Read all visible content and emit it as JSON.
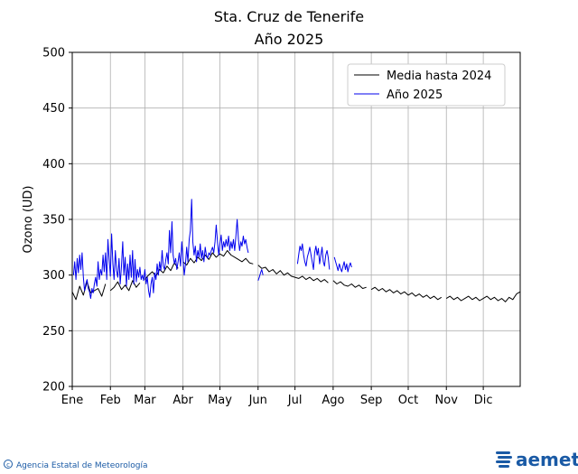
{
  "chart_data": {
    "type": "line",
    "title": "Sta. Cruz de Tenerife",
    "subtitle": "Año 2025",
    "xlabel": "",
    "ylabel": "Ozono (UD)",
    "xlim": [
      1,
      365
    ],
    "ylim": [
      200,
      500
    ],
    "y_ticks": [
      200,
      250,
      300,
      350,
      400,
      450,
      500
    ],
    "x_ticks": [
      {
        "label": "Ene",
        "day": 1
      },
      {
        "label": "Feb",
        "day": 32
      },
      {
        "label": "Mar",
        "day": 60
      },
      {
        "label": "Abr",
        "day": 91
      },
      {
        "label": "May",
        "day": 121
      },
      {
        "label": "Jun",
        "day": 152
      },
      {
        "label": "Jul",
        "day": 182
      },
      {
        "label": "Ago",
        "day": 213
      },
      {
        "label": "Sep",
        "day": 244
      },
      {
        "label": "Oct",
        "day": 274
      },
      {
        "label": "Nov",
        "day": 305
      },
      {
        "label": "Dic",
        "day": 335
      }
    ],
    "grid": true,
    "legend_position": "top-right",
    "series": [
      {
        "name": "Media hasta 2024",
        "color": "#000000",
        "points": [
          [
            1,
            285
          ],
          [
            4,
            278
          ],
          [
            7,
            290
          ],
          [
            10,
            282
          ],
          [
            13,
            294
          ],
          [
            16,
            284
          ],
          [
            19,
            286
          ],
          [
            22,
            288
          ],
          [
            25,
            281
          ],
          [
            28,
            292
          ],
          [
            32,
            286
          ],
          [
            35,
            289
          ],
          [
            38,
            294
          ],
          [
            41,
            287
          ],
          [
            44,
            291
          ],
          [
            47,
            286
          ],
          [
            50,
            295
          ],
          [
            53,
            289
          ],
          [
            56,
            293
          ],
          [
            60,
            296
          ],
          [
            63,
            300
          ],
          [
            66,
            303
          ],
          [
            69,
            299
          ],
          [
            72,
            305
          ],
          [
            75,
            302
          ],
          [
            78,
            308
          ],
          [
            81,
            304
          ],
          [
            84,
            311
          ],
          [
            87,
            306
          ],
          [
            91,
            312
          ],
          [
            94,
            309
          ],
          [
            97,
            315
          ],
          [
            100,
            311
          ],
          [
            103,
            316
          ],
          [
            106,
            313
          ],
          [
            109,
            318
          ],
          [
            112,
            314
          ],
          [
            115,
            320
          ],
          [
            118,
            316
          ],
          [
            121,
            319
          ],
          [
            124,
            317
          ],
          [
            127,
            322
          ],
          [
            130,
            318
          ],
          [
            133,
            316
          ],
          [
            136,
            314
          ],
          [
            139,
            312
          ],
          [
            142,
            315
          ],
          [
            145,
            311
          ],
          [
            148,
            310
          ],
          [
            152,
            309
          ],
          [
            155,
            306
          ],
          [
            158,
            307
          ],
          [
            161,
            303
          ],
          [
            164,
            305
          ],
          [
            167,
            301
          ],
          [
            170,
            304
          ],
          [
            173,
            300
          ],
          [
            176,
            302
          ],
          [
            179,
            299
          ],
          [
            182,
            298
          ],
          [
            185,
            297
          ],
          [
            188,
            299
          ],
          [
            191,
            296
          ],
          [
            194,
            298
          ],
          [
            197,
            295
          ],
          [
            200,
            297
          ],
          [
            203,
            294
          ],
          [
            206,
            296
          ],
          [
            209,
            293
          ],
          [
            213,
            295
          ],
          [
            216,
            292
          ],
          [
            219,
            294
          ],
          [
            222,
            291
          ],
          [
            225,
            290
          ],
          [
            228,
            292
          ],
          [
            231,
            289
          ],
          [
            234,
            291
          ],
          [
            237,
            288
          ],
          [
            240,
            289
          ],
          [
            244,
            287
          ],
          [
            247,
            289
          ],
          [
            250,
            286
          ],
          [
            253,
            288
          ],
          [
            256,
            285
          ],
          [
            259,
            287
          ],
          [
            262,
            284
          ],
          [
            265,
            286
          ],
          [
            268,
            283
          ],
          [
            271,
            285
          ],
          [
            274,
            282
          ],
          [
            277,
            284
          ],
          [
            280,
            281
          ],
          [
            283,
            283
          ],
          [
            286,
            280
          ],
          [
            289,
            282
          ],
          [
            292,
            279
          ],
          [
            295,
            281
          ],
          [
            298,
            278
          ],
          [
            301,
            280
          ],
          [
            305,
            279
          ],
          [
            308,
            281
          ],
          [
            311,
            278
          ],
          [
            314,
            280
          ],
          [
            317,
            277
          ],
          [
            320,
            279
          ],
          [
            323,
            281
          ],
          [
            326,
            278
          ],
          [
            329,
            280
          ],
          [
            332,
            277
          ],
          [
            335,
            279
          ],
          [
            338,
            281
          ],
          [
            341,
            278
          ],
          [
            344,
            280
          ],
          [
            347,
            277
          ],
          [
            350,
            279
          ],
          [
            353,
            276
          ],
          [
            356,
            280
          ],
          [
            359,
            278
          ],
          [
            362,
            283
          ],
          [
            365,
            285
          ]
        ]
      },
      {
        "name": "Año 2025",
        "color": "#0000ee",
        "points": [
          [
            2,
            300
          ],
          [
            3,
            312
          ],
          [
            4,
            296
          ],
          [
            5,
            315
          ],
          [
            6,
            302
          ],
          [
            7,
            318
          ],
          [
            8,
            305
          ],
          [
            9,
            320
          ],
          [
            10,
            298
          ],
          [
            11,
            286
          ],
          [
            12,
            292
          ],
          [
            13,
            296
          ],
          [
            14,
            288
          ],
          [
            15,
            285
          ],
          [
            16,
            279
          ],
          [
            17,
            288
          ],
          [
            18,
            284
          ],
          [
            19,
            292
          ],
          [
            20,
            298
          ],
          [
            21,
            290
          ],
          [
            22,
            312
          ],
          [
            23,
            296
          ],
          [
            24,
            305
          ],
          [
            25,
            300
          ],
          [
            26,
            318
          ],
          [
            27,
            303
          ],
          [
            28,
            320
          ],
          [
            29,
            296
          ],
          [
            30,
            332
          ],
          [
            31,
            314
          ],
          [
            32,
            299
          ],
          [
            33,
            337
          ],
          [
            34,
            310
          ],
          [
            35,
            296
          ],
          [
            36,
            322
          ],
          [
            37,
            304
          ],
          [
            38,
            298
          ],
          [
            39,
            315
          ],
          [
            40,
            292
          ],
          [
            41,
            308
          ],
          [
            42,
            330
          ],
          [
            43,
            300
          ],
          [
            44,
            316
          ],
          [
            45,
            290
          ],
          [
            46,
            310
          ],
          [
            47,
            296
          ],
          [
            48,
            318
          ],
          [
            49,
            298
          ],
          [
            50,
            322
          ],
          [
            51,
            292
          ],
          [
            52,
            314
          ],
          [
            53,
            294
          ],
          [
            54,
            305
          ],
          [
            55,
            298
          ],
          [
            56,
            307
          ],
          [
            57,
            296
          ],
          [
            58,
            300
          ],
          [
            59,
            295
          ],
          [
            60,
            305
          ],
          [
            61,
            292
          ],
          [
            62,
            298
          ],
          [
            63,
            286
          ],
          [
            64,
            280
          ],
          [
            65,
            292
          ],
          [
            66,
            298
          ],
          [
            67,
            284
          ],
          [
            68,
            302
          ],
          [
            69,
            296
          ],
          [
            70,
            310
          ],
          [
            71,
            300
          ],
          [
            72,
            312
          ],
          [
            73,
            304
          ],
          [
            74,
            322
          ],
          [
            75,
            308
          ],
          [
            76,
            305
          ],
          [
            77,
            314
          ],
          [
            78,
            320
          ],
          [
            79,
            310
          ],
          [
            80,
            340
          ],
          [
            81,
            320
          ],
          [
            82,
            348
          ],
          [
            83,
            318
          ],
          [
            84,
            310
          ],
          [
            85,
            315
          ],
          [
            86,
            305
          ],
          [
            87,
            312
          ],
          [
            88,
            320
          ],
          [
            89,
            308
          ],
          [
            90,
            330
          ],
          [
            91,
            315
          ],
          [
            92,
            300
          ],
          [
            93,
            310
          ],
          [
            94,
            325
          ],
          [
            95,
            312
          ],
          [
            96,
            332
          ],
          [
            97,
            340
          ],
          [
            98,
            368
          ],
          [
            99,
            330
          ],
          [
            100,
            318
          ],
          [
            101,
            326
          ],
          [
            102,
            312
          ],
          [
            103,
            322
          ],
          [
            104,
            316
          ],
          [
            105,
            328
          ],
          [
            106,
            315
          ],
          [
            107,
            322
          ],
          [
            108,
            312
          ],
          [
            109,
            325
          ],
          [
            110,
            318
          ],
          [
            111,
            315
          ],
          [
            112,
            320
          ],
          [
            113,
            318
          ],
          [
            114,
            322
          ],
          [
            115,
            325
          ],
          [
            116,
            320
          ],
          [
            117,
            330
          ],
          [
            118,
            345
          ],
          [
            119,
            330
          ],
          [
            120,
            318
          ],
          [
            121,
            328
          ],
          [
            122,
            336
          ],
          [
            123,
            322
          ],
          [
            124,
            330
          ],
          [
            125,
            325
          ],
          [
            126,
            332
          ],
          [
            127,
            326
          ],
          [
            128,
            335
          ],
          [
            129,
            322
          ],
          [
            130,
            330
          ],
          [
            131,
            324
          ],
          [
            132,
            332
          ],
          [
            133,
            322
          ],
          [
            134,
            335
          ],
          [
            135,
            350
          ],
          [
            136,
            332
          ],
          [
            137,
            322
          ],
          [
            138,
            330
          ],
          [
            139,
            326
          ],
          [
            140,
            335
          ],
          [
            141,
            328
          ],
          [
            142,
            332
          ],
          [
            143,
            325
          ],
          [
            144,
            320
          ],
          [
            152,
            295
          ],
          [
            153,
            298
          ],
          [
            154,
            302
          ],
          [
            155,
            305
          ],
          [
            156,
            300
          ],
          [
            184,
            310
          ],
          [
            185,
            318
          ],
          [
            186,
            326
          ],
          [
            187,
            322
          ],
          [
            188,
            328
          ],
          [
            189,
            318
          ],
          [
            190,
            312
          ],
          [
            191,
            308
          ],
          [
            192,
            316
          ],
          [
            193,
            320
          ],
          [
            194,
            325
          ],
          [
            195,
            318
          ],
          [
            196,
            312
          ],
          [
            197,
            305
          ],
          [
            198,
            320
          ],
          [
            199,
            326
          ],
          [
            200,
            318
          ],
          [
            201,
            324
          ],
          [
            202,
            310
          ],
          [
            203,
            318
          ],
          [
            204,
            325
          ],
          [
            205,
            312
          ],
          [
            206,
            308
          ],
          [
            207,
            318
          ],
          [
            208,
            322
          ],
          [
            209,
            316
          ],
          [
            210,
            305
          ],
          [
            214,
            316
          ],
          [
            215,
            312
          ],
          [
            216,
            308
          ],
          [
            217,
            304
          ],
          [
            218,
            310
          ],
          [
            219,
            306
          ],
          [
            220,
            303
          ],
          [
            221,
            308
          ],
          [
            222,
            312
          ],
          [
            223,
            305
          ],
          [
            224,
            310
          ],
          [
            225,
            303
          ],
          [
            226,
            308
          ],
          [
            227,
            311
          ],
          [
            228,
            307
          ]
        ]
      }
    ]
  },
  "footer": {
    "left_text": "Agencia Estatal de Meteorología",
    "brand_text": "aemet",
    "brand_color": "#1a5aa5"
  }
}
